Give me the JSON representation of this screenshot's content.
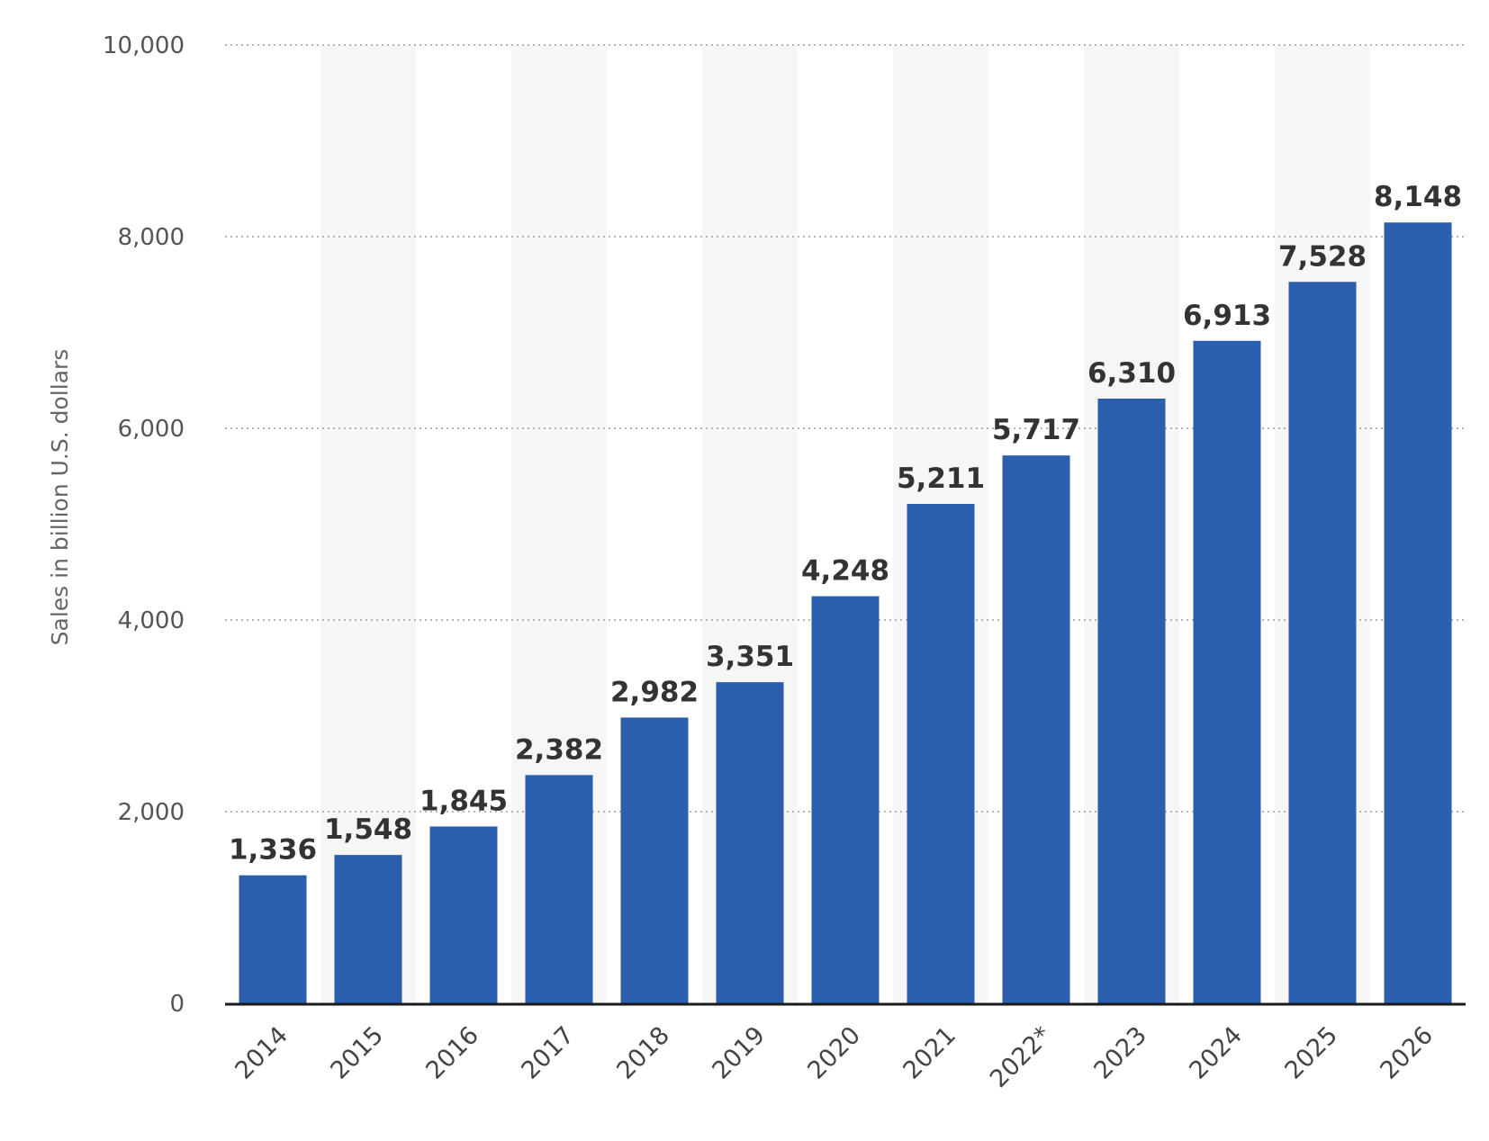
{
  "chart_data": {
    "type": "bar",
    "title": "",
    "xlabel": "",
    "ylabel": "Sales in billion U.S. dollars",
    "categories": [
      "2014",
      "2015",
      "2016",
      "2017",
      "2018",
      "2019",
      "2020",
      "2021",
      "2022*",
      "2023",
      "2024",
      "2025",
      "2026"
    ],
    "values": [
      1336,
      1548,
      1845,
      2382,
      2982,
      3351,
      4248,
      5211,
      5717,
      6310,
      6913,
      7528,
      8148
    ],
    "value_labels": [
      "1,336",
      "1,548",
      "1,845",
      "2,382",
      "2,982",
      "3,351",
      "4,248",
      "5,211",
      "5,717",
      "6,310",
      "6,913",
      "7,528",
      "8,148"
    ],
    "ylim": [
      0,
      10000
    ],
    "yticks": [
      0,
      2000,
      4000,
      6000,
      8000,
      10000
    ],
    "ytick_labels": [
      "0",
      "2,000",
      "4,000",
      "6,000",
      "8,000",
      "10,000"
    ],
    "grid": true,
    "legend": "none",
    "colors": {
      "bar": "#2b5fad",
      "alt_column_band": "#f6f6f6",
      "gridline": "#b5b5b5",
      "baseline": "#1a1a1a"
    }
  }
}
